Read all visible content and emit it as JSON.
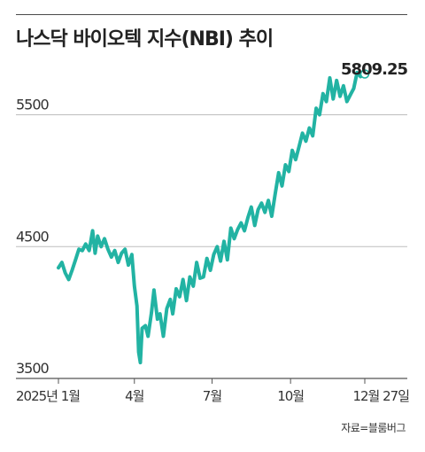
{
  "title": "나스닥 바이오텍 지수(NBI) 추이",
  "source": "자료=블룸버그",
  "chart_data": {
    "type": "line",
    "title": "나스닥 바이오텍 지수(NBI) 추이",
    "ylabel": "",
    "xlabel": "",
    "ylim": [
      3500,
      5900
    ],
    "yticks": [
      3500,
      4500,
      5500
    ],
    "xlim": [
      "2025-01-02",
      "2025-12-27"
    ],
    "xticks": [
      {
        "date": "2025-01-02",
        "label": "2025년 1월"
      },
      {
        "date": "2025-04-01",
        "label": "4월"
      },
      {
        "date": "2025-07-01",
        "label": "7월"
      },
      {
        "date": "2025-10-01",
        "label": "10월"
      },
      {
        "date": "2025-12-27",
        "label": "12월 27일"
      }
    ],
    "last_value_label": "5809.25",
    "grid": true,
    "color": "#22b3a3",
    "series": [
      {
        "x": [
          "2025-01-02",
          "2025-01-06",
          "2025-01-10",
          "2025-01-14",
          "2025-01-18",
          "2025-01-22",
          "2025-01-26",
          "2025-01-30",
          "2025-02-03",
          "2025-02-07",
          "2025-02-11",
          "2025-02-14",
          "2025-02-17",
          "2025-02-21",
          "2025-02-25",
          "2025-03-01",
          "2025-03-05",
          "2025-03-09",
          "2025-03-13",
          "2025-03-17",
          "2025-03-21",
          "2025-03-25",
          "2025-03-29",
          "2025-04-01",
          "2025-04-04",
          "2025-04-06",
          "2025-04-08",
          "2025-04-10",
          "2025-04-14",
          "2025-04-17",
          "2025-04-21",
          "2025-04-24",
          "2025-04-28",
          "2025-05-01",
          "2025-05-05",
          "2025-05-09",
          "2025-05-13",
          "2025-05-16",
          "2025-05-20",
          "2025-05-24",
          "2025-05-28",
          "2025-06-01",
          "2025-06-05",
          "2025-06-09",
          "2025-06-13",
          "2025-06-17",
          "2025-06-21",
          "2025-06-25",
          "2025-06-29",
          "2025-07-03",
          "2025-07-07",
          "2025-07-11",
          "2025-07-15",
          "2025-07-19",
          "2025-07-23",
          "2025-07-27",
          "2025-07-31",
          "2025-08-04",
          "2025-08-08",
          "2025-08-12",
          "2025-08-16",
          "2025-08-20",
          "2025-08-24",
          "2025-08-28",
          "2025-09-01",
          "2025-09-05",
          "2025-09-09",
          "2025-09-13",
          "2025-09-17",
          "2025-09-21",
          "2025-09-25",
          "2025-09-29",
          "2025-10-03",
          "2025-10-07",
          "2025-10-11",
          "2025-10-15",
          "2025-10-19",
          "2025-10-23",
          "2025-10-27",
          "2025-10-31",
          "2025-11-04",
          "2025-11-08",
          "2025-11-12",
          "2025-11-16",
          "2025-11-20",
          "2025-11-24",
          "2025-11-28",
          "2025-12-02",
          "2025-12-06",
          "2025-12-10",
          "2025-12-14",
          "2025-12-18",
          "2025-12-22",
          "2025-12-27"
        ],
        "values": [
          4340,
          4380,
          4300,
          4250,
          4320,
          4400,
          4480,
          4470,
          4520,
          4470,
          4620,
          4450,
          4580,
          4500,
          4560,
          4480,
          4420,
          4470,
          4380,
          4450,
          4480,
          4360,
          4440,
          4200,
          4050,
          3700,
          3620,
          3880,
          3900,
          3820,
          4000,
          4170,
          3950,
          3990,
          3820,
          4030,
          4100,
          3990,
          4180,
          4120,
          4250,
          4090,
          4270,
          4200,
          4380,
          4260,
          4270,
          4410,
          4320,
          4440,
          4500,
          4390,
          4540,
          4400,
          4640,
          4560,
          4630,
          4680,
          4620,
          4720,
          4800,
          4660,
          4780,
          4830,
          4760,
          4850,
          4730,
          4900,
          5060,
          4960,
          5120,
          5070,
          5230,
          5160,
          5260,
          5360,
          5300,
          5400,
          5340,
          5550,
          5500,
          5660,
          5600,
          5780,
          5620,
          5760,
          5640,
          5720,
          5600,
          5650,
          5700,
          5820,
          5790,
          5809.25
        ]
      }
    ]
  }
}
